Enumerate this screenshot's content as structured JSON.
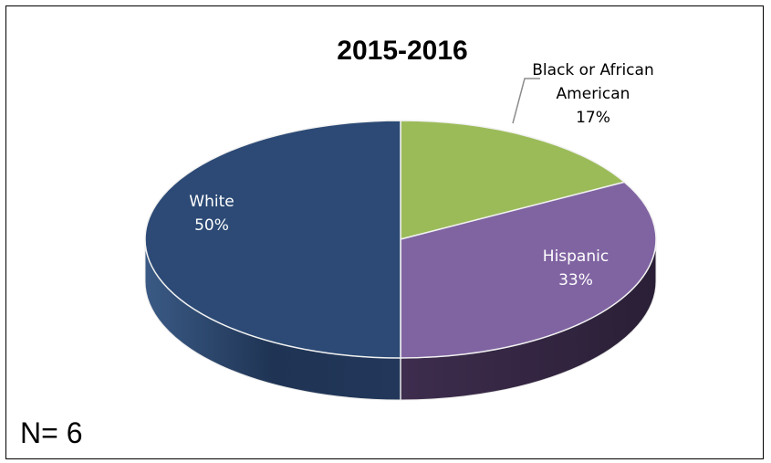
{
  "chart_data": {
    "type": "pie",
    "title": "2015-2016",
    "labels": [
      "Black or African American",
      "Hispanic",
      "White"
    ],
    "values": [
      17,
      33,
      50
    ],
    "unit": "%",
    "colors": [
      "#9BBB59",
      "#8064A2",
      "#2C4A75"
    ],
    "side_colors": [
      "#6E8A38",
      "#3A2A4A",
      "#233A5C"
    ],
    "label_lines": [
      [
        "Black or African",
        "American",
        "17%"
      ],
      [
        "Hispanic",
        "33%"
      ],
      [
        "White",
        "50%"
      ]
    ],
    "label_colors": [
      "#000000",
      "#FFFFFF",
      "#FFFFFF"
    ],
    "style": "3d"
  },
  "note": "N= 6"
}
